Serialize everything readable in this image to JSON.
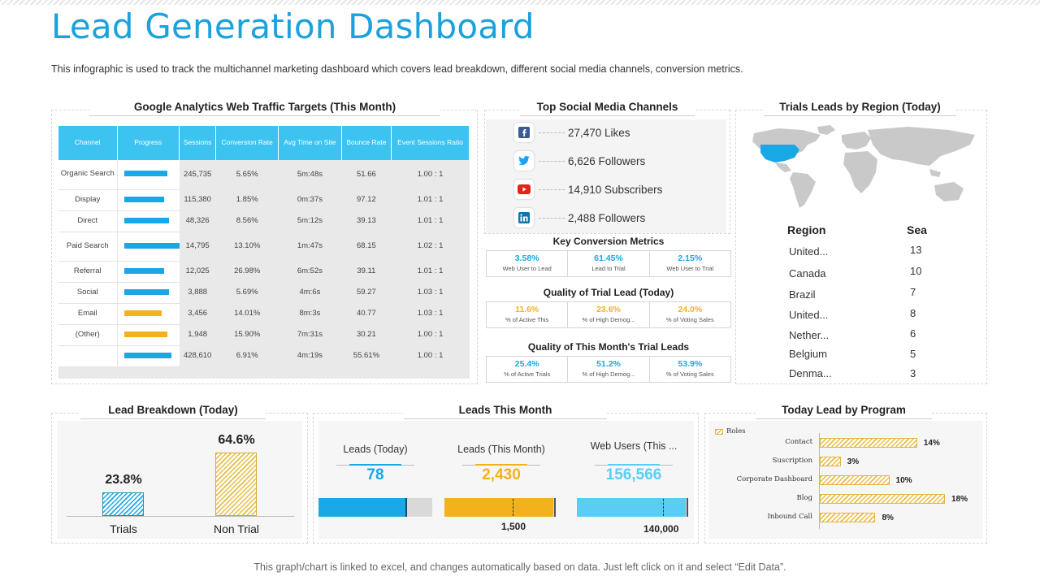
{
  "header": {
    "title": "Lead Generation Dashboard",
    "subtitle": "This infographic is used to track the multichannel marketing dashboard which covers lead breakdown, different social media channels, conversion metrics."
  },
  "colors": {
    "accent": "#1ba1dc",
    "blue": "#1aa7e6",
    "yellow": "#f4b11e",
    "lightblue": "#5bcdf5"
  },
  "ga": {
    "title": "Google Analytics Web Traffic Targets (This Month)",
    "columns": [
      "Channel",
      "Progress",
      "Sessions",
      "Conversion Rate",
      "Avg Time on Site",
      "Bounce Rate",
      "Event Sessions Ratio"
    ],
    "rows": [
      {
        "channel": "Organic Search",
        "progress": 0.79,
        "color": "blue",
        "sessions": "245,735",
        "conv": "5.65%",
        "time": "5m:48s",
        "bounce": "51.66",
        "ratio": "1.00 : 1"
      },
      {
        "channel": "Display",
        "progress": 0.73,
        "color": "blue",
        "sessions": "115,380",
        "conv": "1.85%",
        "time": "0m:37s",
        "bounce": "97.12",
        "ratio": "1.01 : 1"
      },
      {
        "channel": "Direct",
        "progress": 0.82,
        "color": "blue",
        "sessions": "48,326",
        "conv": "8.56%",
        "time": "5m:12s",
        "bounce": "39.13",
        "ratio": "1.01 : 1"
      },
      {
        "channel": "Paid Search",
        "progress": 1.0,
        "color": "blue",
        "sessions": "14,795",
        "conv": "13.10%",
        "time": "1m:47s",
        "bounce": "68.15",
        "ratio": "1.02 : 1"
      },
      {
        "channel": "Referral",
        "progress": 0.73,
        "color": "blue",
        "sessions": "12,025",
        "conv": "26.98%",
        "time": "6m:52s",
        "bounce": "39.11",
        "ratio": "1.01 : 1"
      },
      {
        "channel": "Social",
        "progress": 0.82,
        "color": "blue",
        "sessions": "3,888",
        "conv": "5.69%",
        "time": "4m:6s",
        "bounce": "59.27",
        "ratio": "1.03 : 1"
      },
      {
        "channel": "Email",
        "progress": 0.68,
        "color": "yellow",
        "sessions": "3,456",
        "conv": "14.01%",
        "time": "8m:3s",
        "bounce": "40.77",
        "ratio": "1.03 : 1"
      },
      {
        "channel": "(Other)",
        "progress": 0.79,
        "color": "yellow",
        "sessions": "1,948",
        "conv": "15.90%",
        "time": "7m:31s",
        "bounce": "30.21",
        "ratio": "1.00 : 1"
      },
      {
        "channel": "",
        "progress": 0.86,
        "color": "blue",
        "sessions": "428,610",
        "conv": "6.91%",
        "time": "4m:19s",
        "bounce": "55.61%",
        "ratio": "1.00 : 1"
      }
    ]
  },
  "social": {
    "title": "Top Social Media Channels",
    "items": [
      {
        "icon": "facebook-icon",
        "text": "27,470 Likes"
      },
      {
        "icon": "twitter-icon",
        "text": "6,626 Followers"
      },
      {
        "icon": "youtube-icon",
        "text": "14,910 Subscribers"
      },
      {
        "icon": "linkedin-icon",
        "text": "2,488 Followers"
      }
    ]
  },
  "metrics": {
    "key": {
      "title": "Key Conversion Metrics",
      "color": "#1aa7e6",
      "cells": [
        {
          "v": "3.58%",
          "l": "Web User to Lead"
        },
        {
          "v": "61.45%",
          "l": "Lead to Trial"
        },
        {
          "v": "2.15%",
          "l": "Web User to Trial"
        }
      ]
    },
    "quality_today": {
      "title": "Quality of Trial Lead (Today)",
      "color": "#f4b11e",
      "cells": [
        {
          "v": "11.6%",
          "l": "% of Active This"
        },
        {
          "v": "23.6%",
          "l": "% of High Demog..."
        },
        {
          "v": "24.0%",
          "l": "% of Voting Sales"
        }
      ]
    },
    "quality_month": {
      "title": "Quality of This Month's Trial Leads",
      "color": "#1aa7e6",
      "cells": [
        {
          "v": "25.4%",
          "l": "% of Active Trials"
        },
        {
          "v": "51.2%",
          "l": "% of High Demog..."
        },
        {
          "v": "53.9%",
          "l": "% of Voting Sales"
        }
      ]
    }
  },
  "region": {
    "title": "Trials Leads by Region (Today)",
    "col_region": "Region",
    "col_sea": "Sea",
    "rows": [
      {
        "name": "United...",
        "value": "13"
      },
      {
        "name": "Canada",
        "value": "10"
      },
      {
        "name": "Brazil",
        "value": "7"
      },
      {
        "name": "United...",
        "value": "8"
      },
      {
        "name": "Nether...",
        "value": "6"
      },
      {
        "name": "Belgium",
        "value": "5"
      },
      {
        "name": "Denma...",
        "value": "3"
      }
    ]
  },
  "breakdown": {
    "title": "Lead Breakdown (Today)",
    "bars": [
      {
        "label": "Trials",
        "pct": "23.8%",
        "value": 23.8
      },
      {
        "label": "Non Trial",
        "pct": "64.6%",
        "value": 64.6
      }
    ]
  },
  "leads_month": {
    "title": "Leads This Month",
    "items": [
      {
        "label": "Leads (Today)",
        "value": "78",
        "color": "#1aa7e6",
        "fill": 0.78,
        "target": ""
      },
      {
        "label": "Leads (This Month)",
        "value": "2,430",
        "color": "#f4b11e",
        "fill": 0.98,
        "target": "1,500"
      },
      {
        "label": "Web Users (This ...",
        "value": "156,566",
        "color": "#5bcdf5",
        "fill": 0.98,
        "target": "140,000"
      }
    ]
  },
  "program": {
    "title": "Today Lead by Program",
    "legend": "Roles",
    "chart_data": {
      "type": "bar",
      "categories": [
        "Contact",
        "Suscription",
        "Corporate Dashboard",
        "Blog",
        "Inbound Call"
      ],
      "values": [
        14,
        3,
        10,
        18,
        8
      ],
      "labels": [
        "14%",
        "3%",
        "10%",
        "18%",
        "8%"
      ]
    }
  },
  "footer": "This graph/chart is linked to excel, and changes automatically based on data. Just left click on it and select “Edit Data”."
}
